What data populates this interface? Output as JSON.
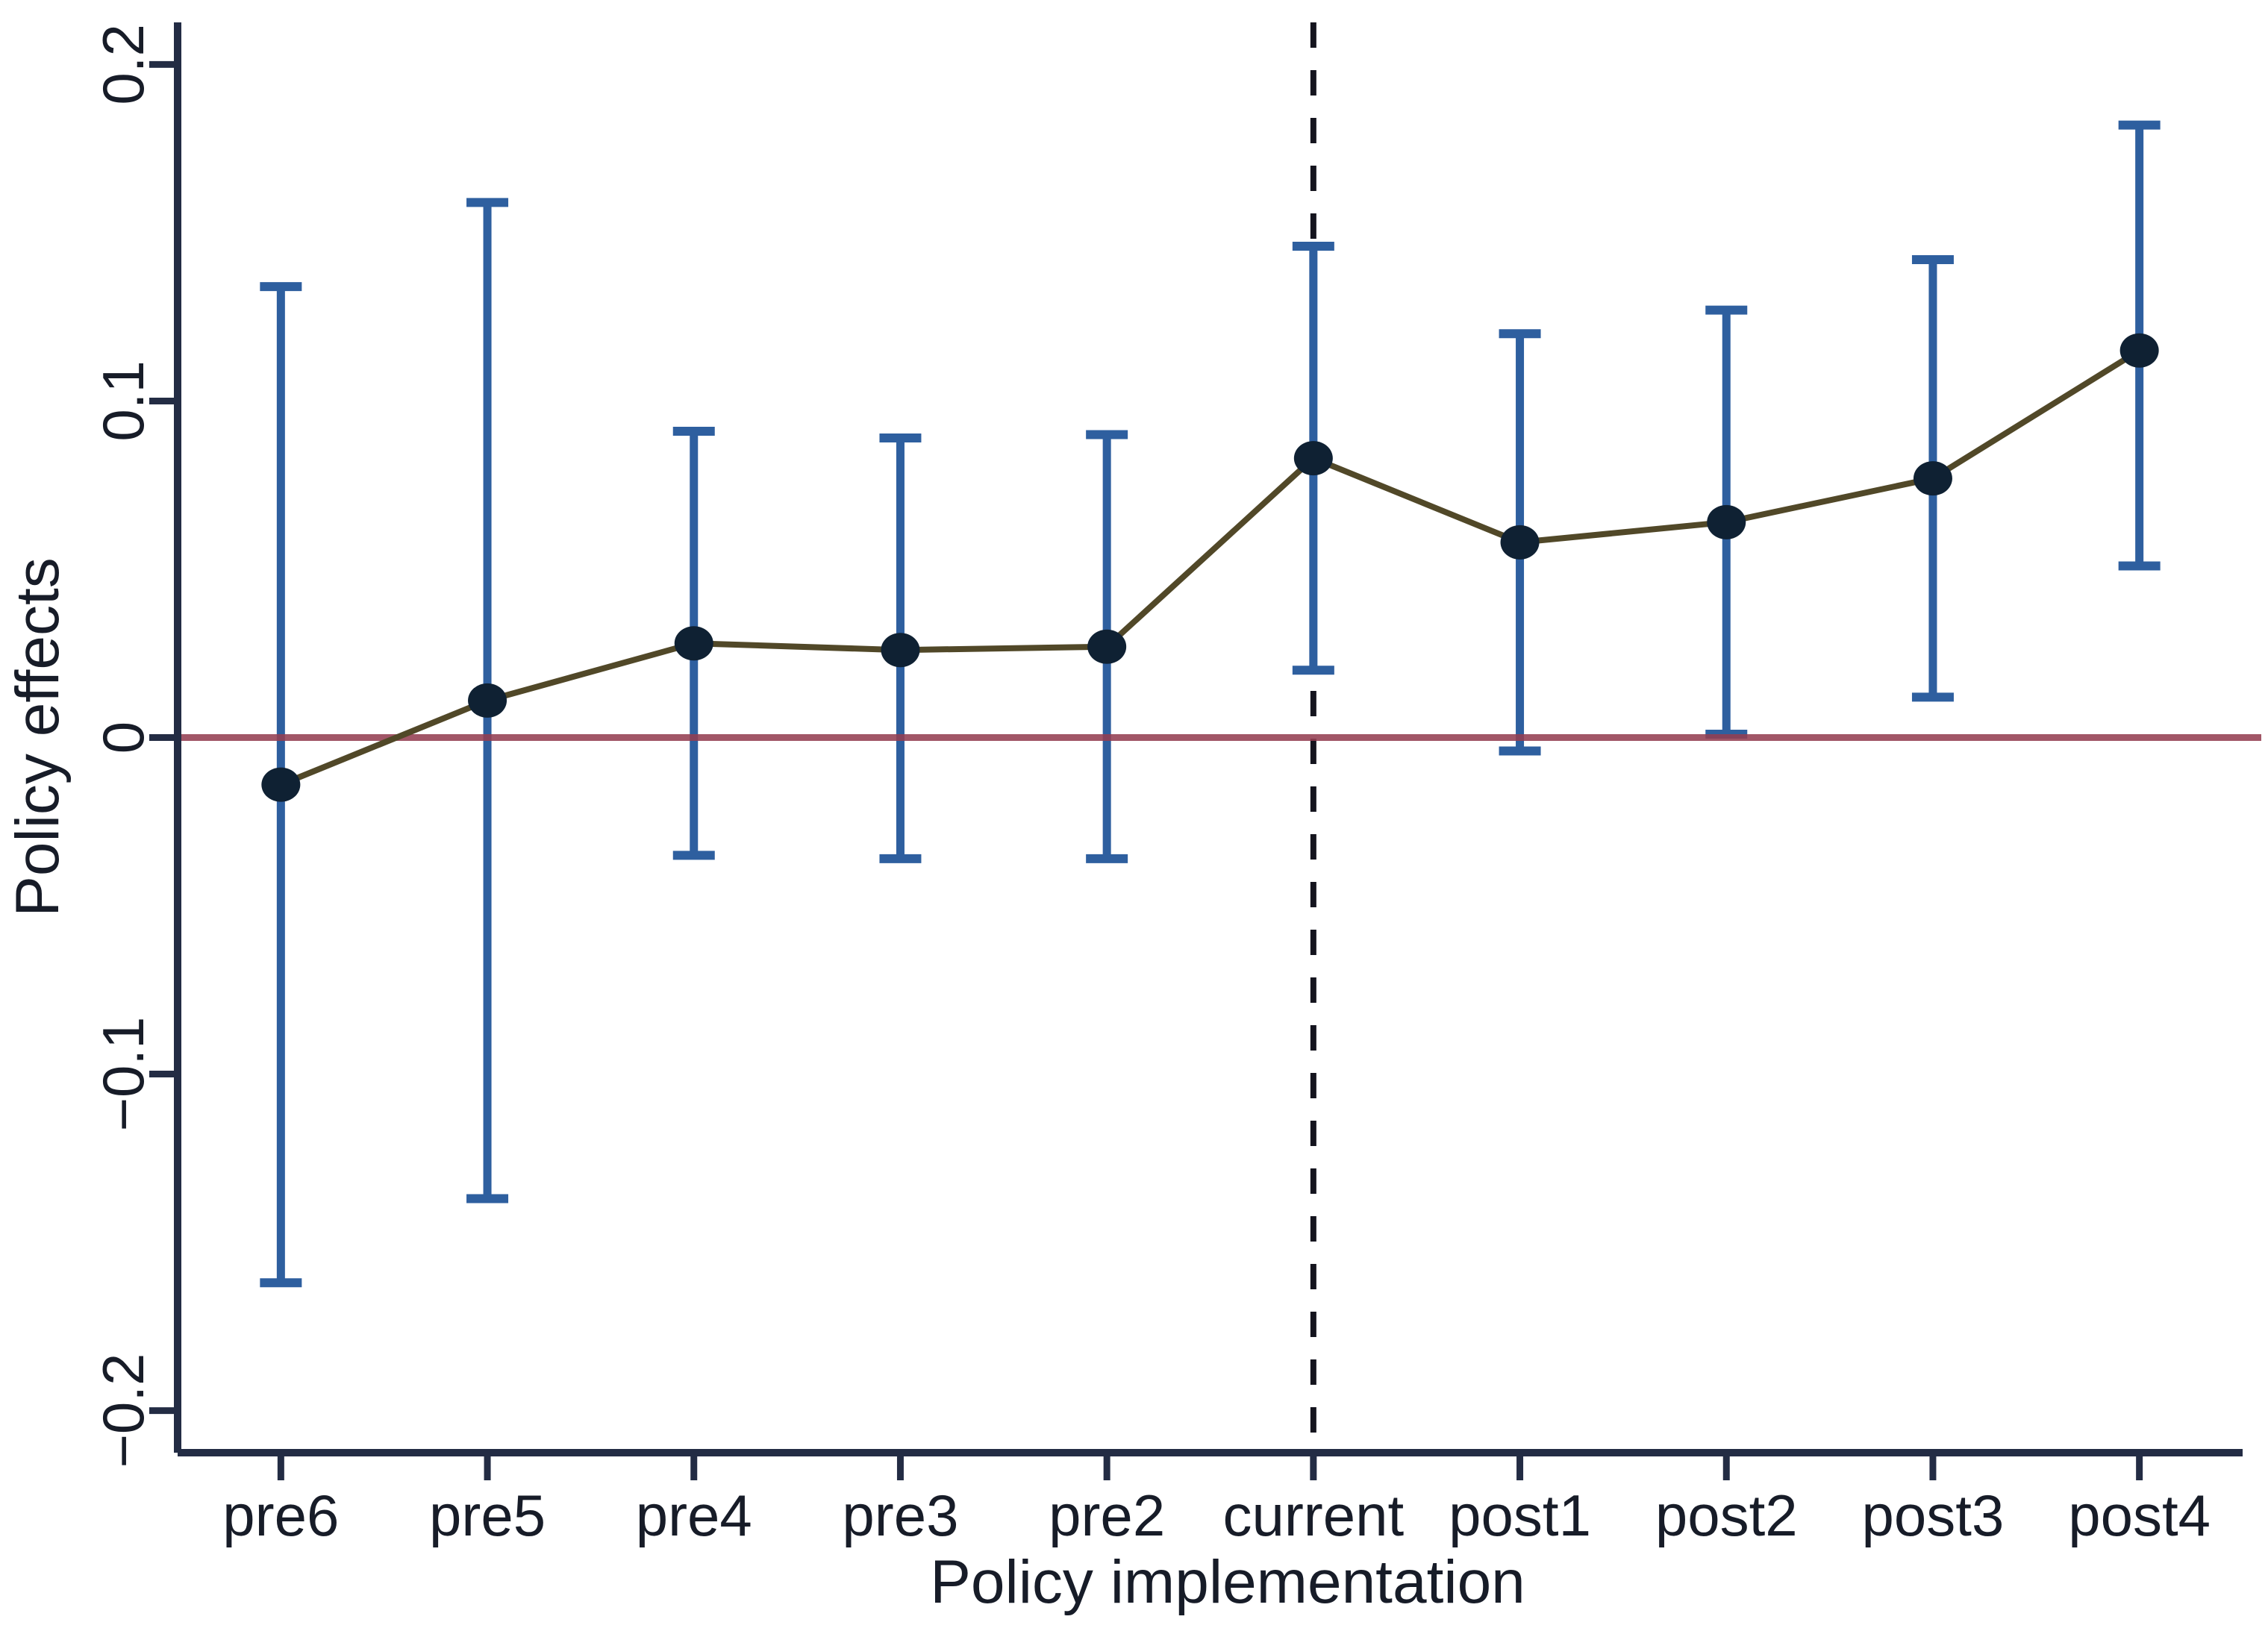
{
  "figure": {
    "background": "#ffffff"
  },
  "chart_data": {
    "type": "line",
    "subtype": "point-estimates-with-confidence-intervals",
    "title": "",
    "xlabel": "Policy implementation",
    "ylabel": "Policy effects",
    "categories": [
      "pre6",
      "pre5",
      "pre4",
      "pre3",
      "pre2",
      "current",
      "post1",
      "post2",
      "post3",
      "post4"
    ],
    "series": [
      {
        "name": "Policy effects",
        "values": [
          -0.014,
          0.011,
          0.028,
          0.026,
          0.027,
          0.083,
          0.058,
          0.064,
          0.077,
          0.115
        ],
        "ci_lower": [
          -0.162,
          -0.137,
          -0.035,
          -0.036,
          -0.036,
          0.02,
          -0.004,
          0.001,
          0.012,
          0.051
        ],
        "ci_upper": [
          0.134,
          0.159,
          0.091,
          0.089,
          0.09,
          0.146,
          0.12,
          0.127,
          0.142,
          0.182
        ]
      }
    ],
    "y_ticks": [
      0.2,
      0.1,
      0,
      -0.1,
      -0.2
    ],
    "y_tick_labels": [
      "0.2",
      "0.1",
      "0",
      "−0.1",
      "−0.2"
    ],
    "ylim": [
      -0.2125,
      0.2125
    ],
    "reference_line_y": 0,
    "vline_at_category": "current",
    "grid": false,
    "legend": false
  },
  "style": {
    "axis_color": "#232c44",
    "text_color": "#171c28",
    "error_bar_color": "#2e5f9f",
    "marker_color": "#0f2133",
    "series_line_color": "#514828",
    "zero_line_color": "#943f52",
    "dashed_line_color": "#14141e",
    "background_color": "#ffffff"
  }
}
